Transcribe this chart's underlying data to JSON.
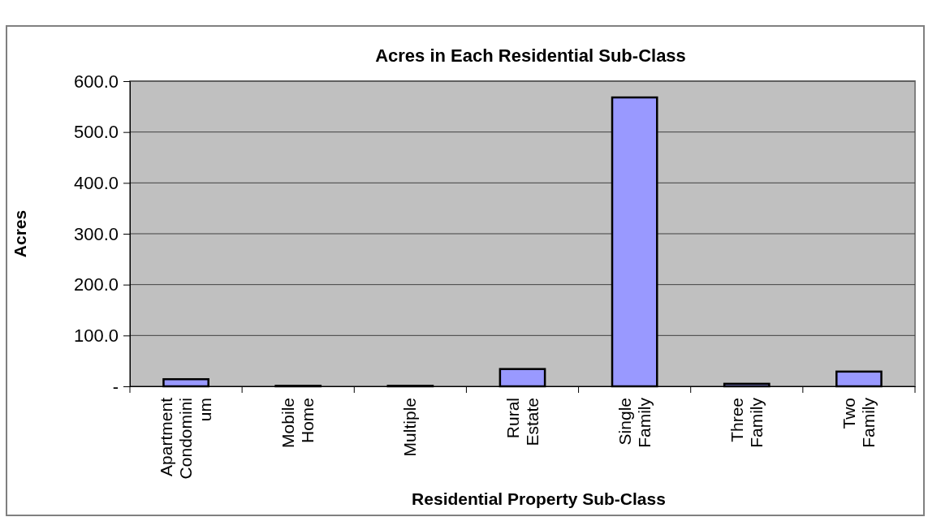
{
  "chart_data": {
    "type": "bar",
    "title": "Acres in Each Residential Sub-Class",
    "xlabel": "Residential Property Sub-Class",
    "ylabel": "Acres",
    "categories": [
      "Apartment Condominium",
      "Mobile Home",
      "Multiple",
      "Rural Estate",
      "Single Family",
      "Three Family",
      "Two Family"
    ],
    "values": [
      14,
      1,
      1,
      34,
      568,
      5,
      29
    ],
    "color": "#9999ff",
    "ylim": [
      0,
      600
    ],
    "yticks": [
      {
        "value": 0,
        "label": "-"
      },
      {
        "value": 100,
        "label": "100.0"
      },
      {
        "value": 200,
        "label": "200.0"
      },
      {
        "value": 300,
        "label": "300.0"
      },
      {
        "value": 400,
        "label": "400.0"
      },
      {
        "value": 500,
        "label": "500.0"
      },
      {
        "value": 600,
        "label": "600.0"
      }
    ],
    "grid": "y"
  }
}
